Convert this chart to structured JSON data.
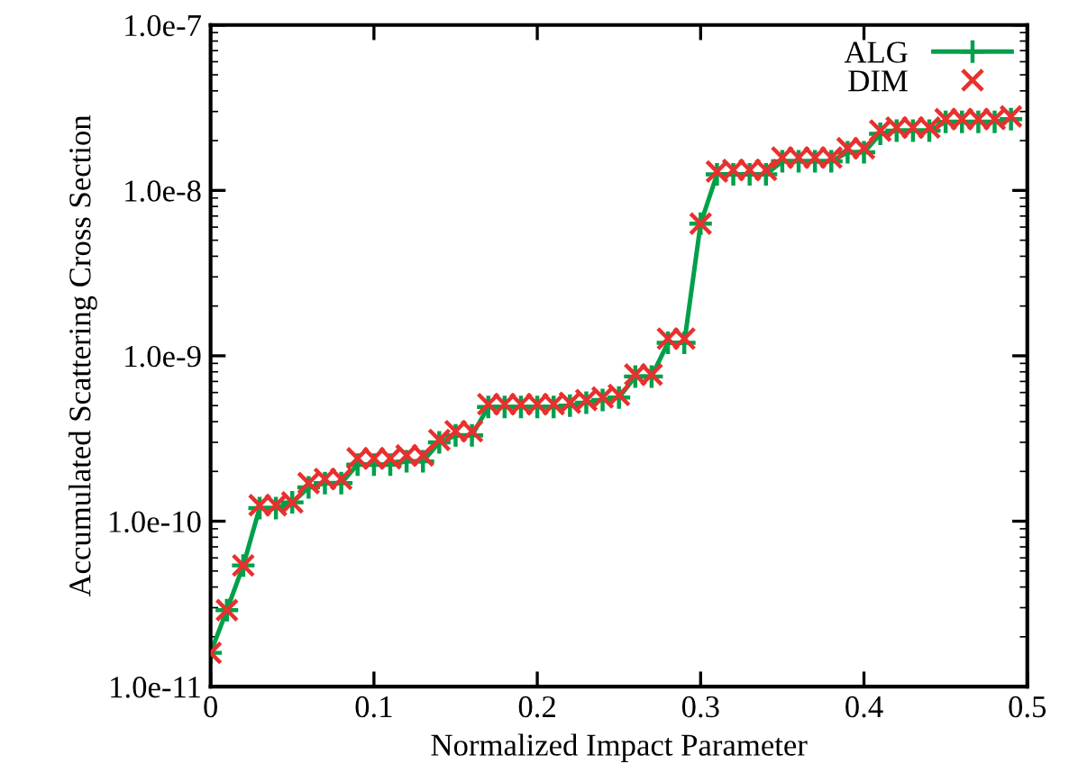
{
  "chart_data": {
    "type": "line",
    "xlabel": "Normalized Impact Parameter",
    "ylabel": "Accumulated Scattering Cross Section",
    "x": [
      0,
      0.01,
      0.02,
      0.03,
      0.04,
      0.05,
      0.06,
      0.07,
      0.08,
      0.09,
      0.1,
      0.11,
      0.12,
      0.13,
      0.14,
      0.15,
      0.16,
      0.17,
      0.18,
      0.19,
      0.2,
      0.21,
      0.22,
      0.23,
      0.24,
      0.25,
      0.26,
      0.27,
      0.28,
      0.29,
      0.3,
      0.31,
      0.32,
      0.33,
      0.34,
      0.35,
      0.36,
      0.37,
      0.38,
      0.39,
      0.4,
      0.41,
      0.42,
      0.43,
      0.44,
      0.45,
      0.46,
      0.47,
      0.48,
      0.49
    ],
    "series": [
      {
        "name": "ALG",
        "marker": "plus",
        "color": "#00a04a",
        "values": [
          1.6e-11,
          2.9e-11,
          5.4e-11,
          1.2e-10,
          1.2e-10,
          1.3e-10,
          1.6e-10,
          1.7e-10,
          1.7e-10,
          2.2e-10,
          2.2e-10,
          2.2e-10,
          2.3e-10,
          2.3e-10,
          3e-10,
          3.3e-10,
          3.3e-10,
          4.9e-10,
          4.9e-10,
          4.9e-10,
          4.9e-10,
          4.9e-10,
          5e-10,
          5.2e-10,
          5.4e-10,
          5.6e-10,
          7.5e-10,
          7.5e-10,
          1.2e-09,
          1.2e-09,
          6.3e-09,
          1.25e-08,
          1.25e-08,
          1.25e-08,
          1.25e-08,
          1.5e-08,
          1.5e-08,
          1.5e-08,
          1.5e-08,
          1.7e-08,
          1.7e-08,
          2.2e-08,
          2.3e-08,
          2.3e-08,
          2.3e-08,
          2.6e-08,
          2.6e-08,
          2.6e-08,
          2.6e-08,
          2.7e-08
        ]
      },
      {
        "name": "DIM",
        "type": "scatter",
        "marker": "cross",
        "color": "#e8302e",
        "values": [
          1.6e-11,
          2.9e-11,
          5.4e-11,
          1.25e-10,
          1.25e-10,
          1.3e-10,
          1.7e-10,
          1.8e-10,
          1.8e-10,
          2.4e-10,
          2.4e-10,
          2.4e-10,
          2.5e-10,
          2.5e-10,
          3.1e-10,
          3.5e-10,
          3.5e-10,
          5.1e-10,
          5.1e-10,
          5.1e-10,
          5.1e-10,
          5.1e-10,
          5.2e-10,
          5.4e-10,
          5.6e-10,
          5.8e-10,
          7.7e-10,
          7.7e-10,
          1.27e-09,
          1.27e-09,
          6.3e-09,
          1.3e-08,
          1.33e-08,
          1.33e-08,
          1.33e-08,
          1.58e-08,
          1.58e-08,
          1.58e-08,
          1.58e-08,
          1.8e-08,
          1.8e-08,
          2.3e-08,
          2.4e-08,
          2.4e-08,
          2.4e-08,
          2.7e-08,
          2.7e-08,
          2.7e-08,
          2.7e-08,
          2.8e-08
        ]
      }
    ],
    "log": "y",
    "xlim": [
      0,
      0.5
    ],
    "xticks": [
      0,
      0.1,
      0.2,
      0.3,
      0.4,
      0.5
    ],
    "ylim": [
      1e-11,
      1e-07
    ],
    "yticks": [
      {
        "value": 1e-11,
        "label": "1.0e-11"
      },
      {
        "value": 1e-10,
        "label": "1.0e-10"
      },
      {
        "value": 1e-09,
        "label": "1.0e-9"
      },
      {
        "value": 1e-08,
        "label": "1.0e-8"
      },
      {
        "value": 1e-07,
        "label": "1.0e-7"
      }
    ],
    "grid": false,
    "legend": "top right",
    "line_style": "solid"
  }
}
